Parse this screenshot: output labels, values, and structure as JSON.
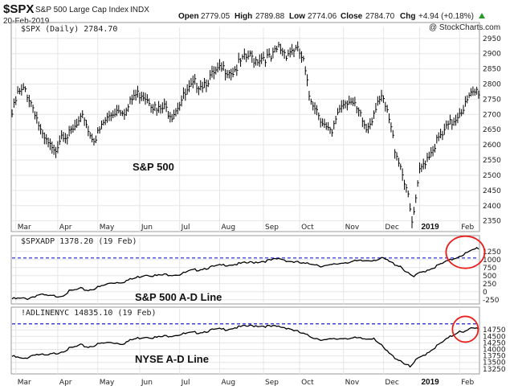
{
  "header": {
    "symbol": "$SPX",
    "name": "S&P 500 Large Cap Index",
    "exchange": "INDX",
    "date": "20-Feb-2019",
    "open_label": "Open",
    "open": "2779.05",
    "high_label": "High",
    "high": "2789.88",
    "low_label": "Low",
    "low": "2774.06",
    "close_label": "Close",
    "close": "2784.70",
    "chg_label": "Chg",
    "chg": "+4.94 (+0.18%)",
    "watermark": "@ StockCharts.com"
  },
  "colors": {
    "price": "#000000",
    "reference_line": "#1f1fd6",
    "circle": "#e8201e",
    "up_arrow": "#2a9a2a"
  },
  "chart_data": [
    {
      "type": "ohlc-bar",
      "legend": "$SPX (Daily) 2784.70",
      "annotation": "S&P 500",
      "yticks": [
        2350,
        2400,
        2450,
        2500,
        2550,
        2600,
        2650,
        2700,
        2750,
        2800,
        2850,
        2900,
        2950
      ],
      "ylim": [
        2320,
        2960
      ],
      "xlim": [
        0,
        245
      ],
      "months": [
        {
          "label": "Mar",
          "x": 2
        },
        {
          "label": "Apr",
          "x": 24
        },
        {
          "label": "May",
          "x": 45
        },
        {
          "label": "Jun",
          "x": 67
        },
        {
          "label": "Jul",
          "x": 88
        },
        {
          "label": "Aug",
          "x": 109
        },
        {
          "label": "Sep",
          "x": 132
        },
        {
          "label": "Oct",
          "x": 151
        },
        {
          "label": "Nov",
          "x": 174
        },
        {
          "label": "Dec",
          "x": 195
        },
        {
          "label": "2019",
          "x": 214,
          "year": true
        },
        {
          "label": "Feb",
          "x": 235
        }
      ],
      "anchors": [
        [
          0,
          2710
        ],
        [
          3,
          2775
        ],
        [
          7,
          2790
        ],
        [
          12,
          2720
        ],
        [
          16,
          2630
        ],
        [
          19,
          2610
        ],
        [
          22,
          2580
        ],
        [
          26,
          2650
        ],
        [
          30,
          2640
        ],
        [
          34,
          2670
        ],
        [
          38,
          2700
        ],
        [
          41,
          2640
        ],
        [
          44,
          2630
        ],
        [
          48,
          2680
        ],
        [
          52,
          2710
        ],
        [
          56,
          2730
        ],
        [
          60,
          2720
        ],
        [
          64,
          2770
        ],
        [
          68,
          2780
        ],
        [
          72,
          2760
        ],
        [
          76,
          2720
        ],
        [
          80,
          2730
        ],
        [
          84,
          2710
        ],
        [
          88,
          2750
        ],
        [
          92,
          2780
        ],
        [
          96,
          2810
        ],
        [
          100,
          2810
        ],
        [
          104,
          2830
        ],
        [
          108,
          2850
        ],
        [
          112,
          2860
        ],
        [
          116,
          2850
        ],
        [
          120,
          2880
        ],
        [
          124,
          2900
        ],
        [
          128,
          2890
        ],
        [
          132,
          2900
        ],
        [
          136,
          2890
        ],
        [
          140,
          2930
        ],
        [
          144,
          2910
        ],
        [
          148,
          2925
        ],
        [
          151,
          2910
        ],
        [
          153,
          2880
        ],
        [
          156,
          2770
        ],
        [
          159,
          2740
        ],
        [
          162,
          2700
        ],
        [
          165,
          2660
        ],
        [
          168,
          2640
        ],
        [
          171,
          2720
        ],
        [
          174,
          2750
        ],
        [
          177,
          2760
        ],
        [
          180,
          2730
        ],
        [
          183,
          2700
        ],
        [
          186,
          2660
        ],
        [
          189,
          2700
        ],
        [
          192,
          2760
        ],
        [
          195,
          2750
        ],
        [
          198,
          2690
        ],
        [
          201,
          2600
        ],
        [
          204,
          2540
        ],
        [
          207,
          2470
        ],
        [
          210,
          2350
        ],
        [
          212,
          2420
        ],
        [
          214,
          2520
        ],
        [
          217,
          2560
        ],
        [
          220,
          2590
        ],
        [
          223,
          2620
        ],
        [
          226,
          2640
        ],
        [
          229,
          2670
        ],
        [
          232,
          2690
        ],
        [
          235,
          2720
        ],
        [
          238,
          2740
        ],
        [
          241,
          2770
        ],
        [
          244,
          2785
        ]
      ],
      "scale_cap_label": "2784.70"
    },
    {
      "type": "line",
      "legend": "$SPXADP 1378.20 (19 Feb)",
      "annotation": "S&P 500 A-D Line",
      "yticks": [
        -250,
        0,
        250,
        500,
        750,
        1000,
        1250
      ],
      "ylim": [
        -330,
        1420
      ],
      "xlim": [
        0,
        245
      ],
      "reference_value": 1050,
      "anchors": [
        [
          0,
          -200
        ],
        [
          8,
          -190
        ],
        [
          14,
          -70
        ],
        [
          20,
          -120
        ],
        [
          26,
          -100
        ],
        [
          30,
          30
        ],
        [
          36,
          110
        ],
        [
          40,
          70
        ],
        [
          46,
          170
        ],
        [
          52,
          300
        ],
        [
          58,
          330
        ],
        [
          64,
          430
        ],
        [
          70,
          560
        ],
        [
          76,
          520
        ],
        [
          82,
          560
        ],
        [
          88,
          560
        ],
        [
          94,
          670
        ],
        [
          100,
          740
        ],
        [
          106,
          800
        ],
        [
          112,
          860
        ],
        [
          118,
          880
        ],
        [
          124,
          920
        ],
        [
          130,
          960
        ],
        [
          136,
          1000
        ],
        [
          141,
          1050
        ],
        [
          145,
          980
        ],
        [
          150,
          930
        ],
        [
          154,
          880
        ],
        [
          158,
          900
        ],
        [
          162,
          830
        ],
        [
          166,
          820
        ],
        [
          170,
          880
        ],
        [
          175,
          940
        ],
        [
          180,
          960
        ],
        [
          185,
          980
        ],
        [
          190,
          1020
        ],
        [
          195,
          1050
        ],
        [
          200,
          900
        ],
        [
          204,
          820
        ],
        [
          208,
          580
        ],
        [
          211,
          480
        ],
        [
          214,
          600
        ],
        [
          218,
          700
        ],
        [
          222,
          790
        ],
        [
          226,
          900
        ],
        [
          230,
          1000
        ],
        [
          235,
          1140
        ],
        [
          240,
          1250
        ],
        [
          244,
          1378
        ]
      ]
    },
    {
      "type": "line",
      "legend": "!ADLINENYC 14835.10 (19 Feb)",
      "annotation": "NYSE A-D Line",
      "yticks": [
        13250,
        13500,
        13750,
        14000,
        14250,
        14500,
        14750
      ],
      "ylim": [
        13120,
        15250
      ],
      "xlim": [
        0,
        245
      ],
      "reference_value": 14980,
      "anchors": [
        [
          0,
          13760
        ],
        [
          6,
          13650
        ],
        [
          12,
          13850
        ],
        [
          18,
          13780
        ],
        [
          24,
          13900
        ],
        [
          30,
          14050
        ],
        [
          36,
          14180
        ],
        [
          40,
          14120
        ],
        [
          46,
          14240
        ],
        [
          52,
          14300
        ],
        [
          58,
          14250
        ],
        [
          64,
          14420
        ],
        [
          70,
          14520
        ],
        [
          76,
          14480
        ],
        [
          82,
          14550
        ],
        [
          88,
          14600
        ],
        [
          94,
          14650
        ],
        [
          100,
          14700
        ],
        [
          106,
          14780
        ],
        [
          112,
          14800
        ],
        [
          118,
          14870
        ],
        [
          124,
          14920
        ],
        [
          128,
          14940
        ],
        [
          132,
          14930
        ],
        [
          136,
          14900
        ],
        [
          140,
          14900
        ],
        [
          145,
          14850
        ],
        [
          150,
          14700
        ],
        [
          155,
          14560
        ],
        [
          160,
          14450
        ],
        [
          165,
          14380
        ],
        [
          170,
          14420
        ],
        [
          175,
          14470
        ],
        [
          180,
          14450
        ],
        [
          186,
          14420
        ],
        [
          190,
          14480
        ],
        [
          196,
          14000
        ],
        [
          200,
          13750
        ],
        [
          204,
          13600
        ],
        [
          207,
          13450
        ],
        [
          209,
          13330
        ],
        [
          212,
          13600
        ],
        [
          216,
          13800
        ],
        [
          220,
          14000
        ],
        [
          225,
          14250
        ],
        [
          230,
          14500
        ],
        [
          235,
          14750
        ],
        [
          238,
          14700
        ],
        [
          241,
          14820
        ],
        [
          244,
          14835
        ]
      ]
    }
  ]
}
